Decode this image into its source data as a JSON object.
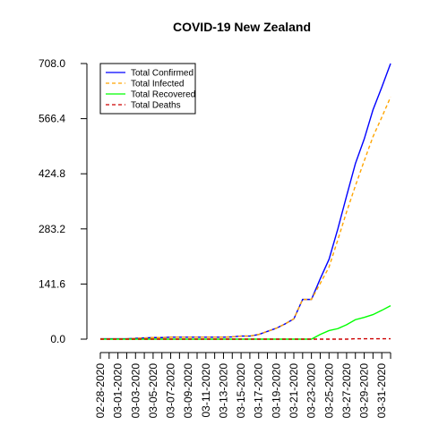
{
  "chart_data": {
    "type": "line",
    "title": "COVID-19 New Zealand",
    "xlabel": "",
    "ylabel": "",
    "x": [
      "02-28-2020",
      "02-29-2020",
      "03-01-2020",
      "03-02-2020",
      "03-03-2020",
      "03-04-2020",
      "03-05-2020",
      "03-06-2020",
      "03-07-2020",
      "03-08-2020",
      "03-09-2020",
      "03-10-2020",
      "03-11-2020",
      "03-12-2020",
      "03-13-2020",
      "03-14-2020",
      "03-15-2020",
      "03-16-2020",
      "03-17-2020",
      "03-18-2020",
      "03-19-2020",
      "03-20-2020",
      "03-21-2020",
      "03-22-2020",
      "03-23-2020",
      "03-24-2020",
      "03-25-2020",
      "03-26-2020",
      "03-27-2020",
      "03-28-2020",
      "03-29-2020",
      "03-30-2020",
      "03-31-2020",
      "04-01-2020"
    ],
    "x_tick_labels": [
      "02-28-2020",
      "03-01-2020",
      "03-03-2020",
      "03-05-2020",
      "03-07-2020",
      "03-09-2020",
      "03-11-2020",
      "03-13-2020",
      "03-15-2020",
      "03-17-2020",
      "03-19-2020",
      "03-21-2020",
      "03-23-2020",
      "03-25-2020",
      "03-27-2020",
      "03-29-2020",
      "03-31-2020"
    ],
    "y_ticks": [
      "0.0",
      "141.6",
      "283.2",
      "424.8",
      "566.4",
      "708.0"
    ],
    "ylim": [
      0,
      708
    ],
    "grid": false,
    "legend_position": "top-left",
    "series": [
      {
        "name": "Total Confirmed",
        "color": "#0000ff",
        "dash": "solid",
        "values": [
          1,
          1,
          1,
          1,
          2,
          3,
          4,
          4,
          5,
          5,
          5,
          5,
          5,
          5,
          5,
          6,
          8,
          8,
          12,
          20,
          28,
          39,
          52,
          102,
          102,
          155,
          205,
          283,
          368,
          451,
          514,
          589,
          647,
          708
        ]
      },
      {
        "name": "Total Infected",
        "color": "#ffa500",
        "dash": "dashed",
        "values": [
          1,
          1,
          1,
          1,
          2,
          3,
          4,
          4,
          5,
          5,
          5,
          5,
          5,
          5,
          5,
          6,
          8,
          8,
          12,
          20,
          28,
          39,
          52,
          102,
          102,
          143,
          185,
          255,
          327,
          394,
          458,
          520,
          570,
          622
        ]
      },
      {
        "name": "Total Recovered",
        "color": "#00ff00",
        "dash": "solid",
        "values": [
          0,
          0,
          0,
          0,
          0,
          0,
          0,
          0,
          0,
          0,
          0,
          0,
          0,
          0,
          0,
          0,
          0,
          0,
          0,
          0,
          0,
          0,
          0,
          0,
          0,
          12,
          22,
          27,
          37,
          50,
          56,
          63,
          74,
          86
        ]
      },
      {
        "name": "Total Deaths",
        "color": "#cd0000",
        "dash": "dashed",
        "values": [
          0,
          0,
          0,
          0,
          0,
          0,
          0,
          0,
          0,
          0,
          0,
          0,
          0,
          0,
          0,
          0,
          0,
          0,
          0,
          0,
          0,
          0,
          0,
          0,
          0,
          0,
          0,
          0,
          0,
          1,
          1,
          1,
          1,
          1
        ]
      }
    ]
  }
}
